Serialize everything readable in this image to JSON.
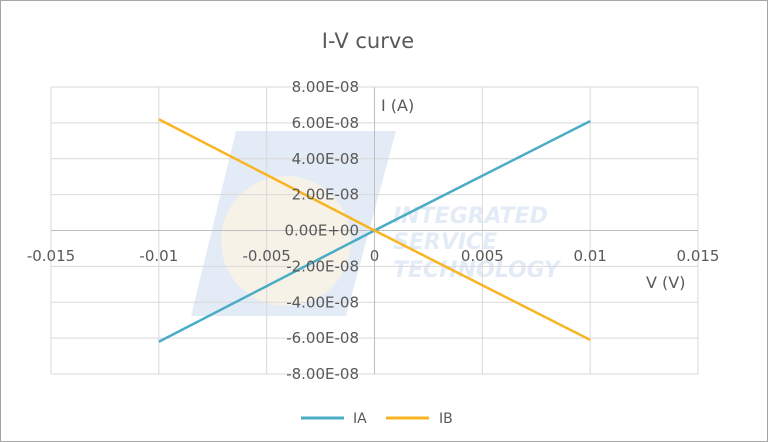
{
  "chart_data": {
    "type": "line",
    "title": "I-V curve",
    "xlabel": "V (V)",
    "ylabel": "I (A)",
    "xlim": [
      -0.015,
      0.015
    ],
    "ylim": [
      -8e-08,
      8e-08
    ],
    "x_ticks": [
      "-0.015",
      "-0.01",
      "-0.005",
      "0",
      "0.005",
      "0.01",
      "0.015"
    ],
    "y_ticks": [
      "-8.00E-08",
      "-6.00E-08",
      "-4.00E-08",
      "-2.00E-08",
      "0.00E+00",
      "2.00E-08",
      "4.00E-08",
      "6.00E-08",
      "8.00E-08"
    ],
    "grid": true,
    "legend_position": "bottom",
    "series": [
      {
        "name": "IA",
        "color": "#4bacc6",
        "x": [
          -0.01,
          -0.005,
          0,
          0.005,
          0.01
        ],
        "y": [
          -6.2e-08,
          -3.1e-08,
          0,
          3.05e-08,
          6.1e-08
        ]
      },
      {
        "name": "IB",
        "color": "#f9b423",
        "x": [
          -0.01,
          -0.005,
          0,
          0.005,
          0.01
        ],
        "y": [
          6.2e-08,
          3.1e-08,
          0,
          -3.05e-08,
          -6.1e-08
        ]
      }
    ]
  },
  "watermark": {
    "text_lines": [
      "INTEGRATED",
      "SERVICE",
      "TECHNOLOGY"
    ]
  }
}
